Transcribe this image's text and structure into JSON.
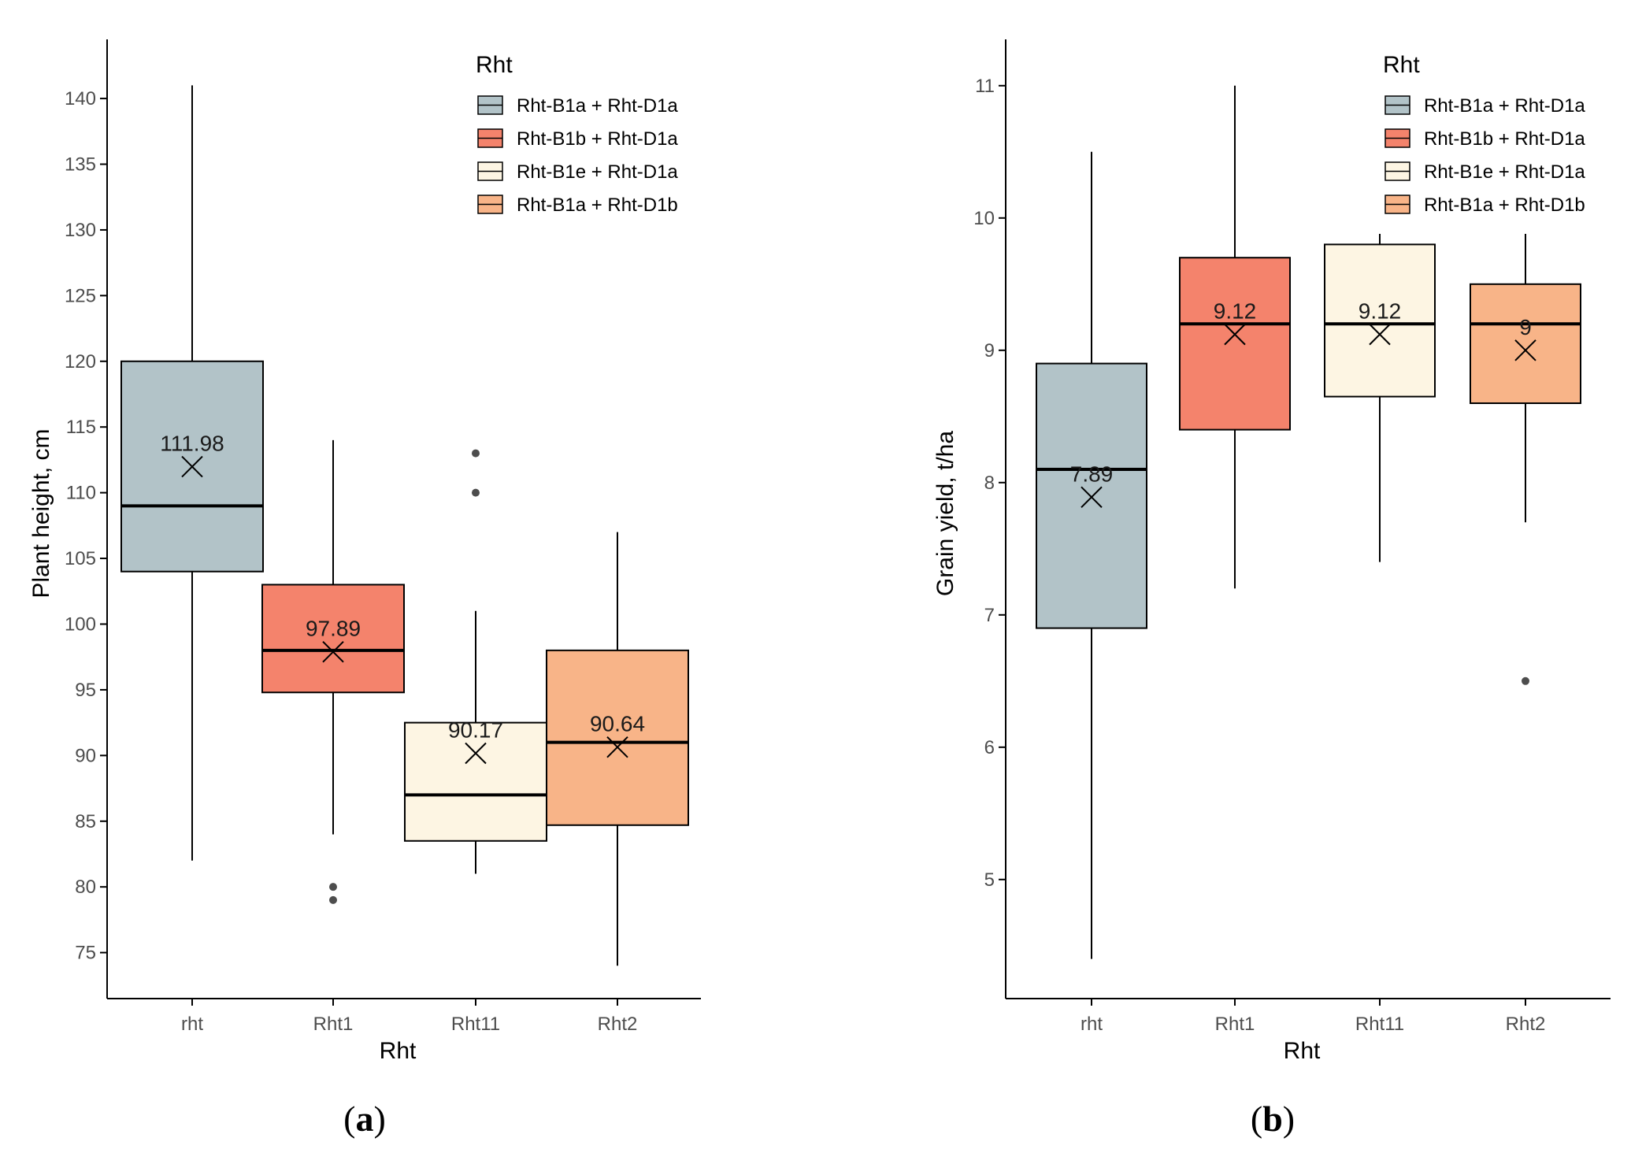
{
  "chart_data": [
    {
      "type": "boxplot",
      "panel_label": "a",
      "xlabel": "Rht",
      "ylabel": "Plant height, cm",
      "ylim": [
        71.5,
        144.5
      ],
      "yticks": [
        75,
        80,
        85,
        90,
        95,
        100,
        105,
        110,
        115,
        120,
        125,
        130,
        135,
        140
      ],
      "categories": [
        "rht",
        "Rht1",
        "Rht11",
        "Rht2"
      ],
      "boxes": [
        {
          "category": "rht",
          "whisker_low": 82,
          "q1": 104,
          "median": 109,
          "q3": 120,
          "whisker_high": 141,
          "mean": 111.98,
          "mean_label": "111.98",
          "outliers": []
        },
        {
          "category": "Rht1",
          "whisker_low": 84,
          "q1": 94.8,
          "median": 98,
          "q3": 103,
          "whisker_high": 114,
          "mean": 97.89,
          "mean_label": "97.89",
          "outliers": [
            80,
            79
          ]
        },
        {
          "category": "Rht11",
          "whisker_low": 81,
          "q1": 83.5,
          "median": 87,
          "q3": 92.5,
          "whisker_high": 101,
          "mean": 90.17,
          "mean_label": "90.17",
          "outliers": [
            113,
            110
          ]
        },
        {
          "category": "Rht2",
          "whisker_low": 74,
          "q1": 84.7,
          "median": 91,
          "q3": 98,
          "whisker_high": 107,
          "mean": 90.64,
          "mean_label": "90.64",
          "outliers": []
        }
      ]
    },
    {
      "type": "boxplot",
      "panel_label": "b",
      "xlabel": "Rht",
      "ylabel": "Grain yield, t/ha",
      "ylim": [
        4.1,
        11.35
      ],
      "yticks": [
        5,
        6,
        7,
        8,
        9,
        10,
        11
      ],
      "categories": [
        "rht",
        "Rht1",
        "Rht11",
        "Rht2"
      ],
      "boxes": [
        {
          "category": "rht",
          "whisker_low": 4.4,
          "q1": 6.9,
          "median": 8.1,
          "q3": 8.9,
          "whisker_high": 10.5,
          "mean": 7.89,
          "mean_label": "7.89",
          "outliers": []
        },
        {
          "category": "Rht1",
          "whisker_low": 7.2,
          "q1": 8.4,
          "median": 9.2,
          "q3": 9.7,
          "whisker_high": 11.0,
          "mean": 9.12,
          "mean_label": "9.12",
          "outliers": []
        },
        {
          "category": "Rht11",
          "whisker_low": 7.4,
          "q1": 8.65,
          "median": 9.2,
          "q3": 9.8,
          "whisker_high": 9.88,
          "mean": 9.12,
          "mean_label": "9.12",
          "outliers": []
        },
        {
          "category": "Rht2",
          "whisker_low": 7.7,
          "q1": 8.6,
          "median": 9.2,
          "q3": 9.5,
          "whisker_high": 9.88,
          "mean": 9.0,
          "mean_label": "9",
          "outliers": [
            6.5
          ]
        }
      ]
    }
  ],
  "legend": {
    "title": "Rht",
    "position": "top-right",
    "entries": [
      {
        "label": "Rht-B1a + Rht-D1a",
        "color": "#b2c3c8"
      },
      {
        "label": "Rht-B1b + Rht-D1a",
        "color": "#f4836c"
      },
      {
        "label": "Rht-B1e + Rht-D1a",
        "color": "#fdf5e3"
      },
      {
        "label": "Rht-B1a + Rht-D1b",
        "color": "#f8b488"
      }
    ]
  },
  "captions": {
    "a": {
      "open": "(",
      "letter": "a",
      "close": ")"
    },
    "b": {
      "open": "(",
      "letter": "b",
      "close": ")"
    }
  },
  "colors": {
    "axis": "#000000",
    "outlier": "#4d4d4d",
    "box_stroke": "#000000"
  }
}
